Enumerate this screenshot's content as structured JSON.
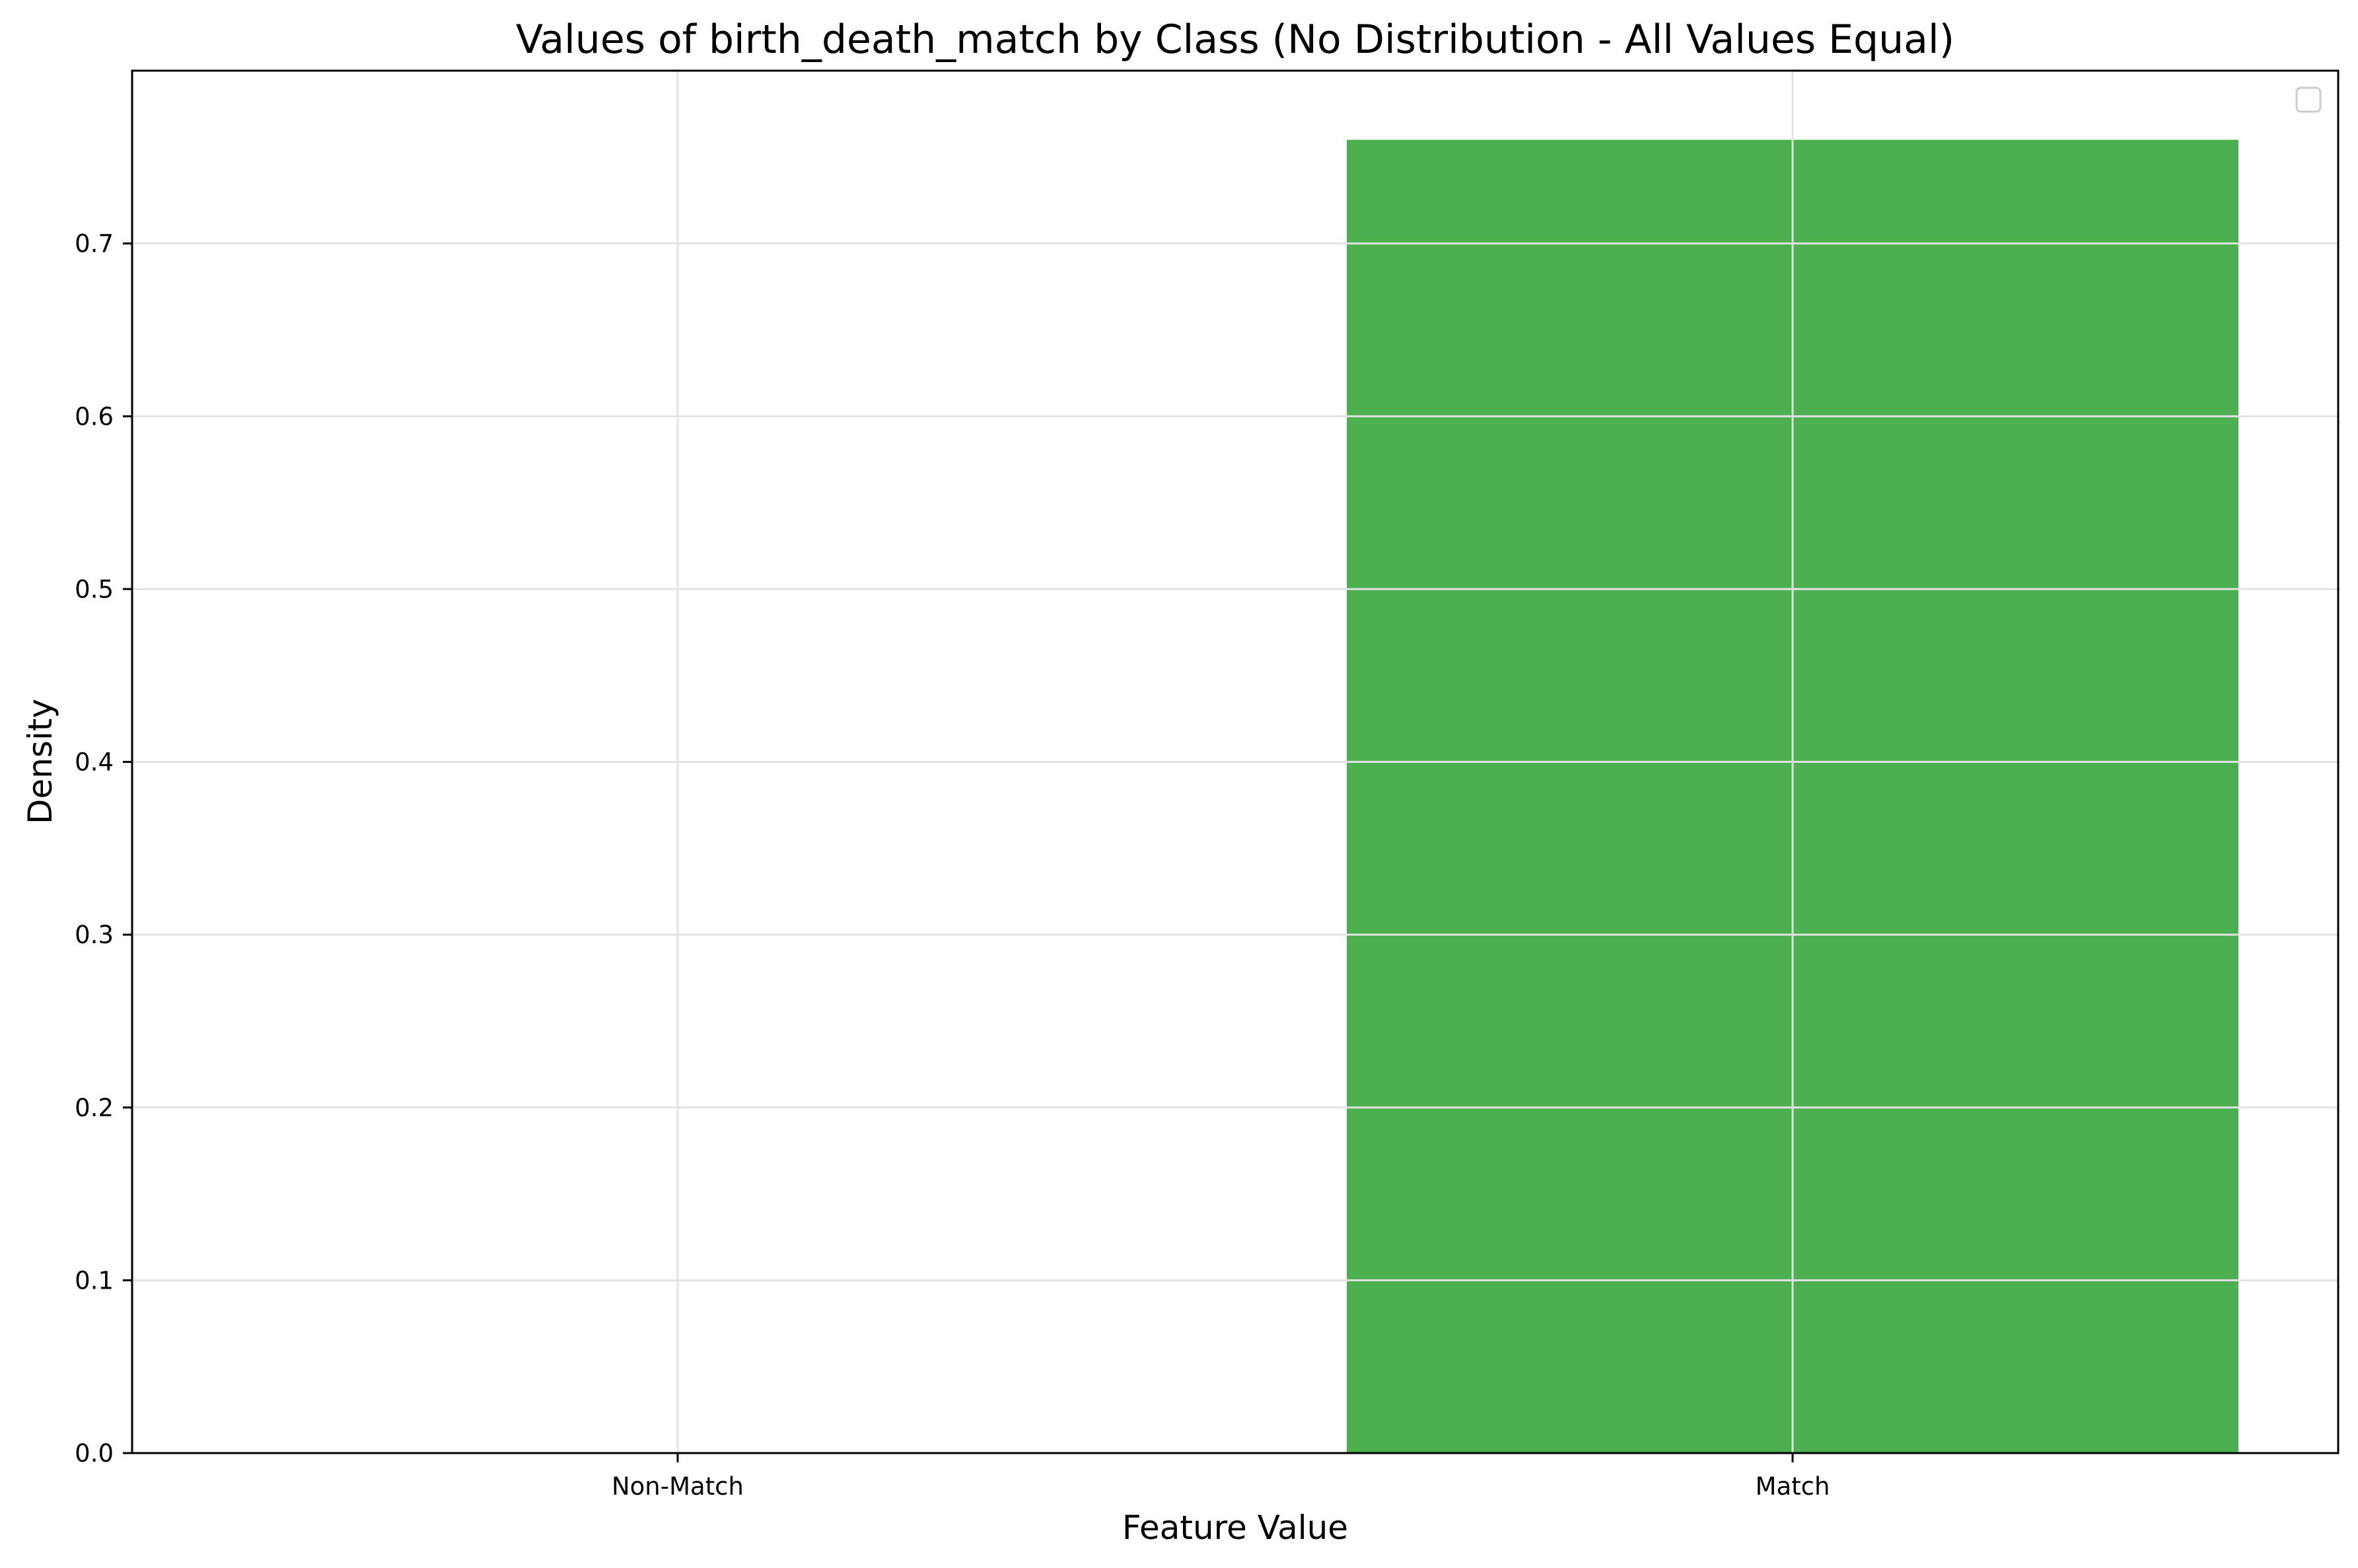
{
  "chart_data": {
    "type": "bar",
    "title": "Values of birth_death_match by Class (No Distribution - All Values Equal)",
    "xlabel": "Feature Value",
    "ylabel": "Density",
    "categories": [
      "Non-Match",
      "Match"
    ],
    "values": [
      0,
      0.76
    ],
    "ylim": [
      0,
      0.8
    ],
    "yticks": [
      0.0,
      0.1,
      0.2,
      0.3,
      0.4,
      0.5,
      0.6,
      0.7
    ],
    "grid": true,
    "legend": {
      "placement": "top-right",
      "entries": []
    },
    "colors": {
      "bar": "#4caf50"
    }
  }
}
